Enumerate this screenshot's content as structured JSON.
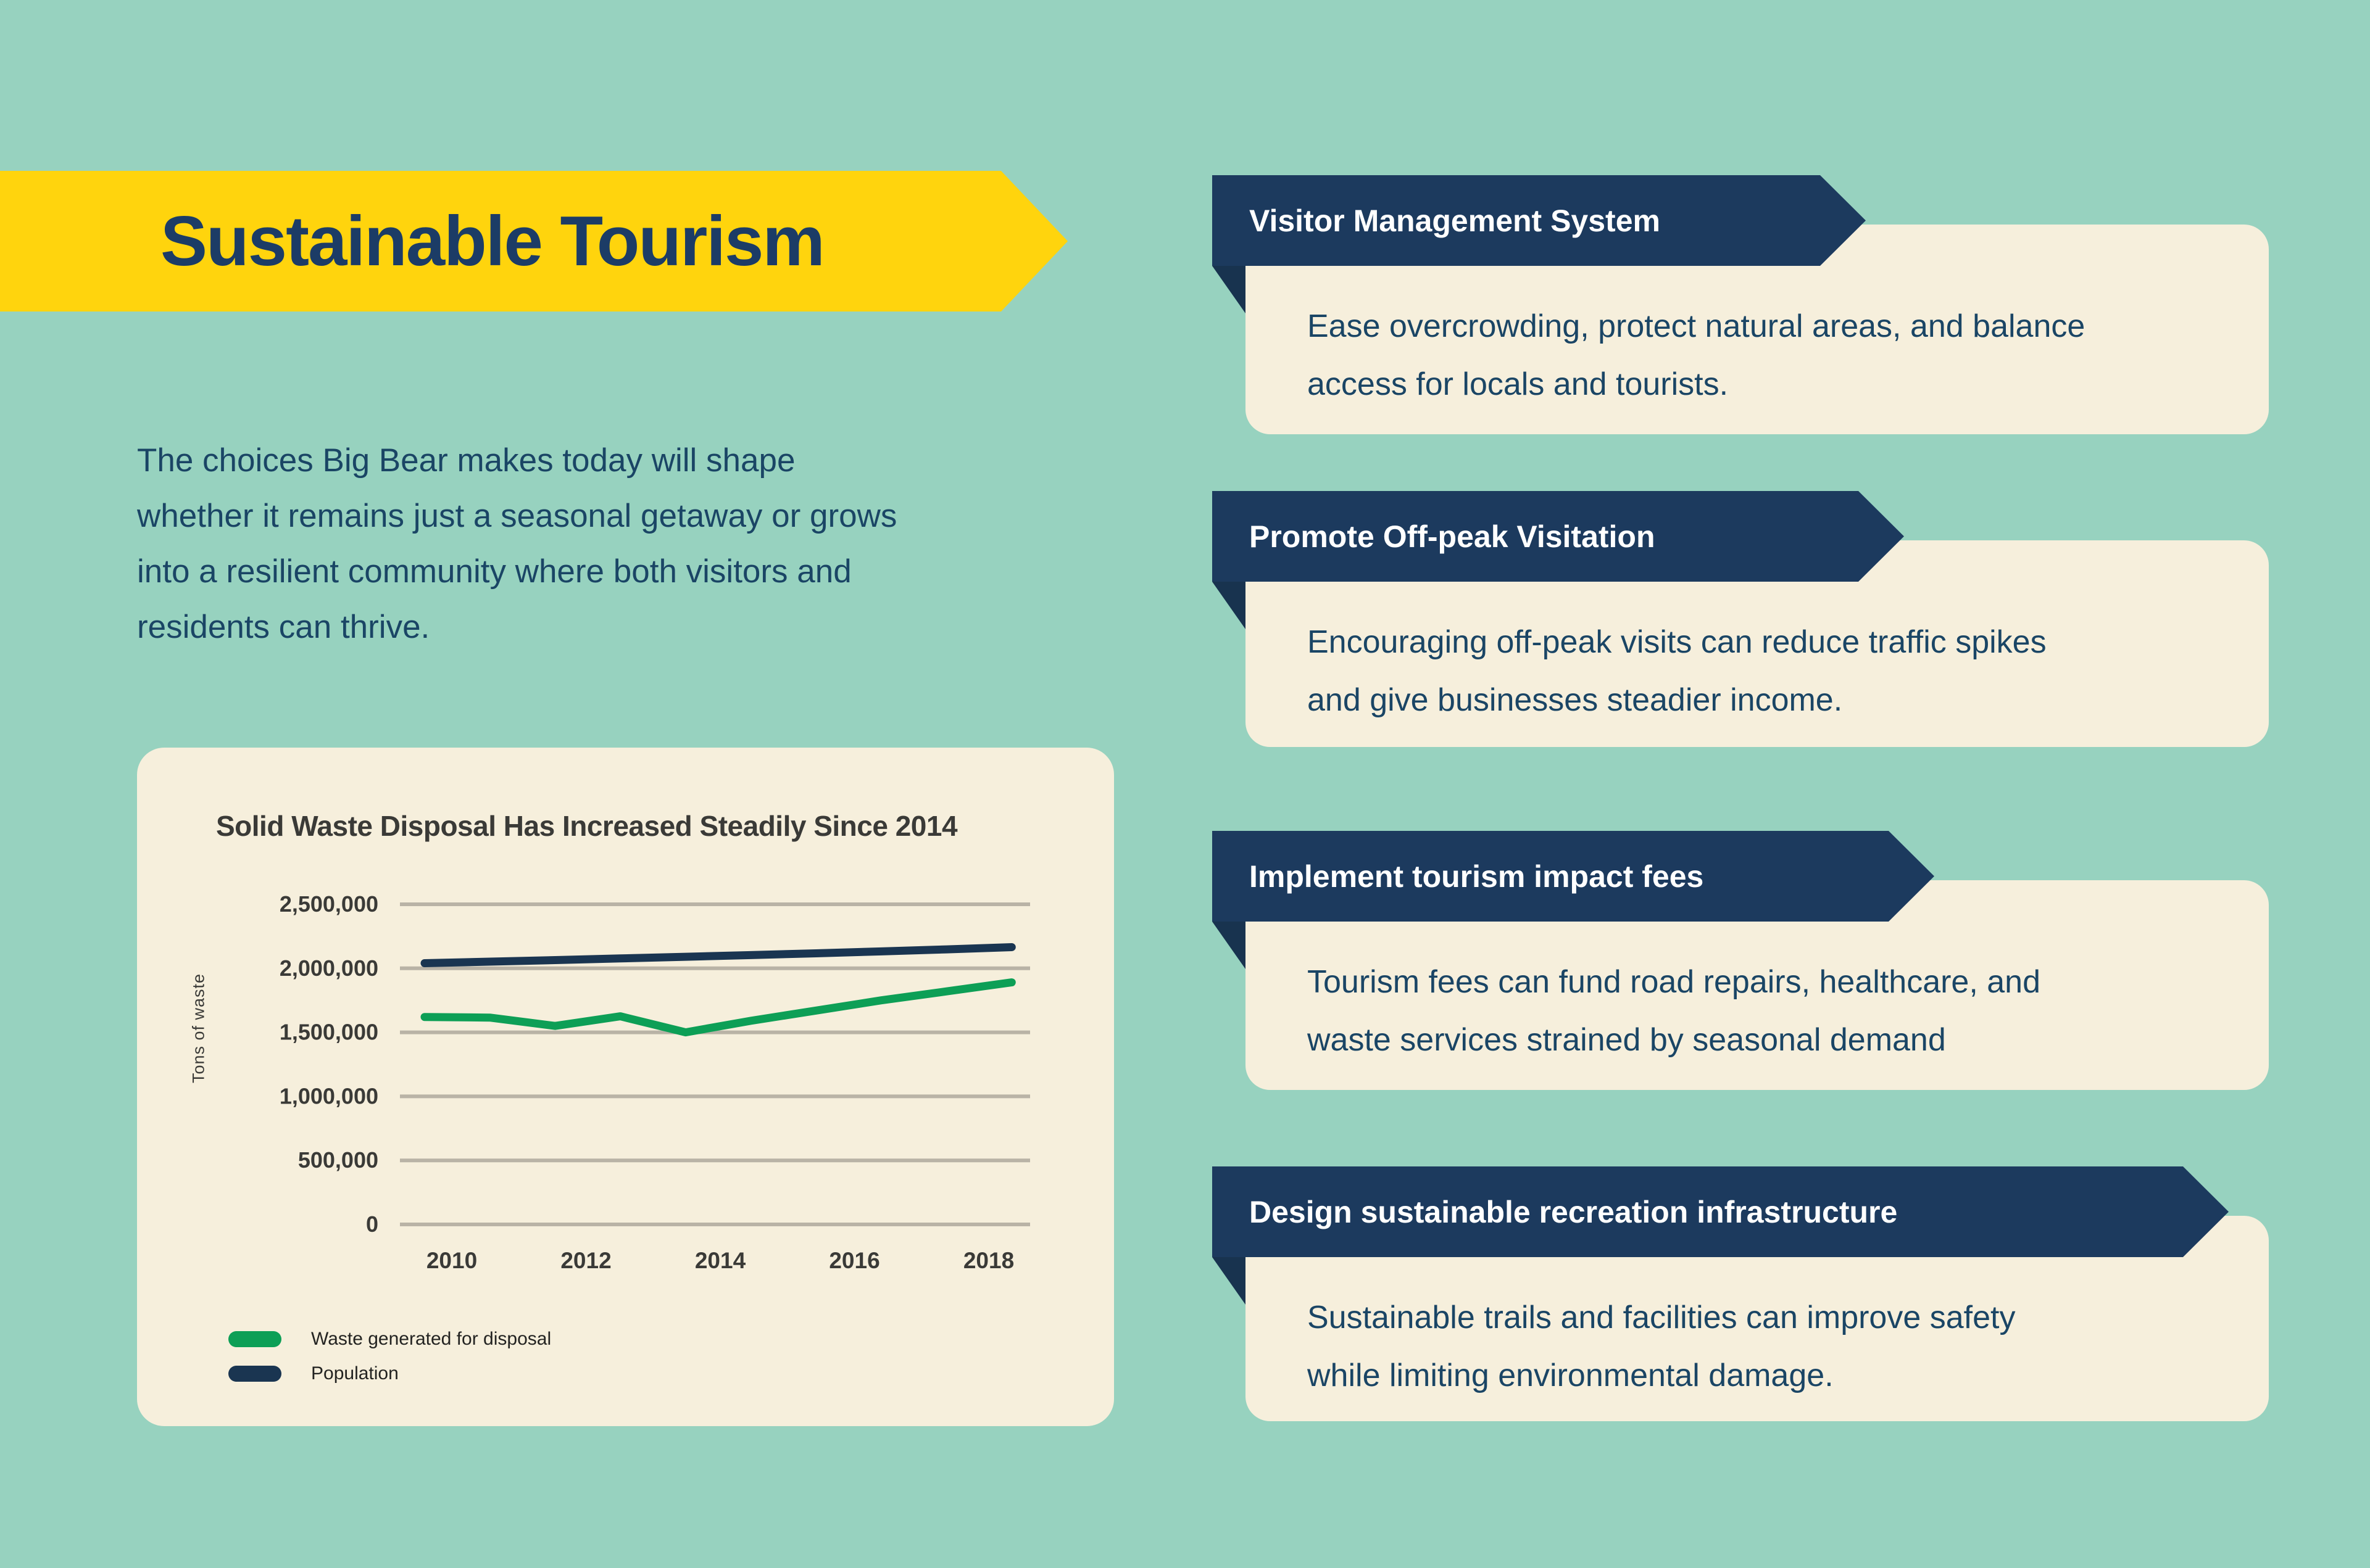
{
  "colors": {
    "background_teal": "#97D2BF",
    "cream": "#F6EFDC",
    "banner_yellow": "#FFD40D",
    "banner_navy": "#1C3A5E",
    "fold_navy": "#18334F",
    "title_navy": "#1C3C66",
    "body_text_navy": "#1A4565",
    "chart_text": "#3A3A37",
    "gridline_gray": "#B9B3A6",
    "waste_green": "#0D9F56",
    "population_navy": "#1A3551"
  },
  "header": {
    "title": "Sustainable Tourism"
  },
  "intro": {
    "lines": [
      "The choices Big Bear makes today will shape",
      "whether it remains just a seasonal getaway or grows",
      "into a resilient community where both visitors and",
      "residents can thrive."
    ]
  },
  "chart_data": {
    "type": "line",
    "title": "Solid Waste Disposal Has Increased Steadily Since 2014",
    "xlabel": "",
    "ylabel": "Tons of waste",
    "x": [
      2010,
      2011,
      2012,
      2013,
      2014,
      2015,
      2016,
      2017,
      2018,
      2019
    ],
    "x_ticks": [
      2010,
      2012,
      2014,
      2016,
      2018
    ],
    "y_ticks": [
      0,
      500000,
      1000000,
      1500000,
      2000000,
      2500000
    ],
    "ylim": [
      0,
      2500000
    ],
    "grid": true,
    "legend_position": "bottom-left",
    "series": [
      {
        "name": "Waste generated for disposal",
        "color": "#0D9F56",
        "values": [
          1620000,
          1615000,
          1550000,
          1625000,
          1500000,
          1590000,
          1670000,
          1750000,
          1820000,
          1890000
        ]
      },
      {
        "name": "Population",
        "color": "#1A3551",
        "values": [
          2040000,
          2052000,
          2064000,
          2077000,
          2090000,
          2103000,
          2117000,
          2132000,
          2148000,
          2165000
        ]
      }
    ]
  },
  "cards": [
    {
      "title": "Visitor Management System",
      "body_lines": [
        "Ease overcrowding, protect natural areas, and balance",
        "access for locals and tourists."
      ]
    },
    {
      "title": "Promote Off-peak Visitation",
      "body_lines": [
        "Encouraging off-peak visits can reduce traffic spikes",
        "and give businesses steadier income."
      ]
    },
    {
      "title": "Implement tourism impact fees",
      "body_lines": [
        "Tourism fees can fund road repairs, healthcare, and",
        "waste services strained by seasonal demand"
      ]
    },
    {
      "title": "Design sustainable recreation infrastructure",
      "body_lines": [
        "Sustainable trails and facilities can improve safety",
        "while limiting environmental damage."
      ]
    }
  ]
}
